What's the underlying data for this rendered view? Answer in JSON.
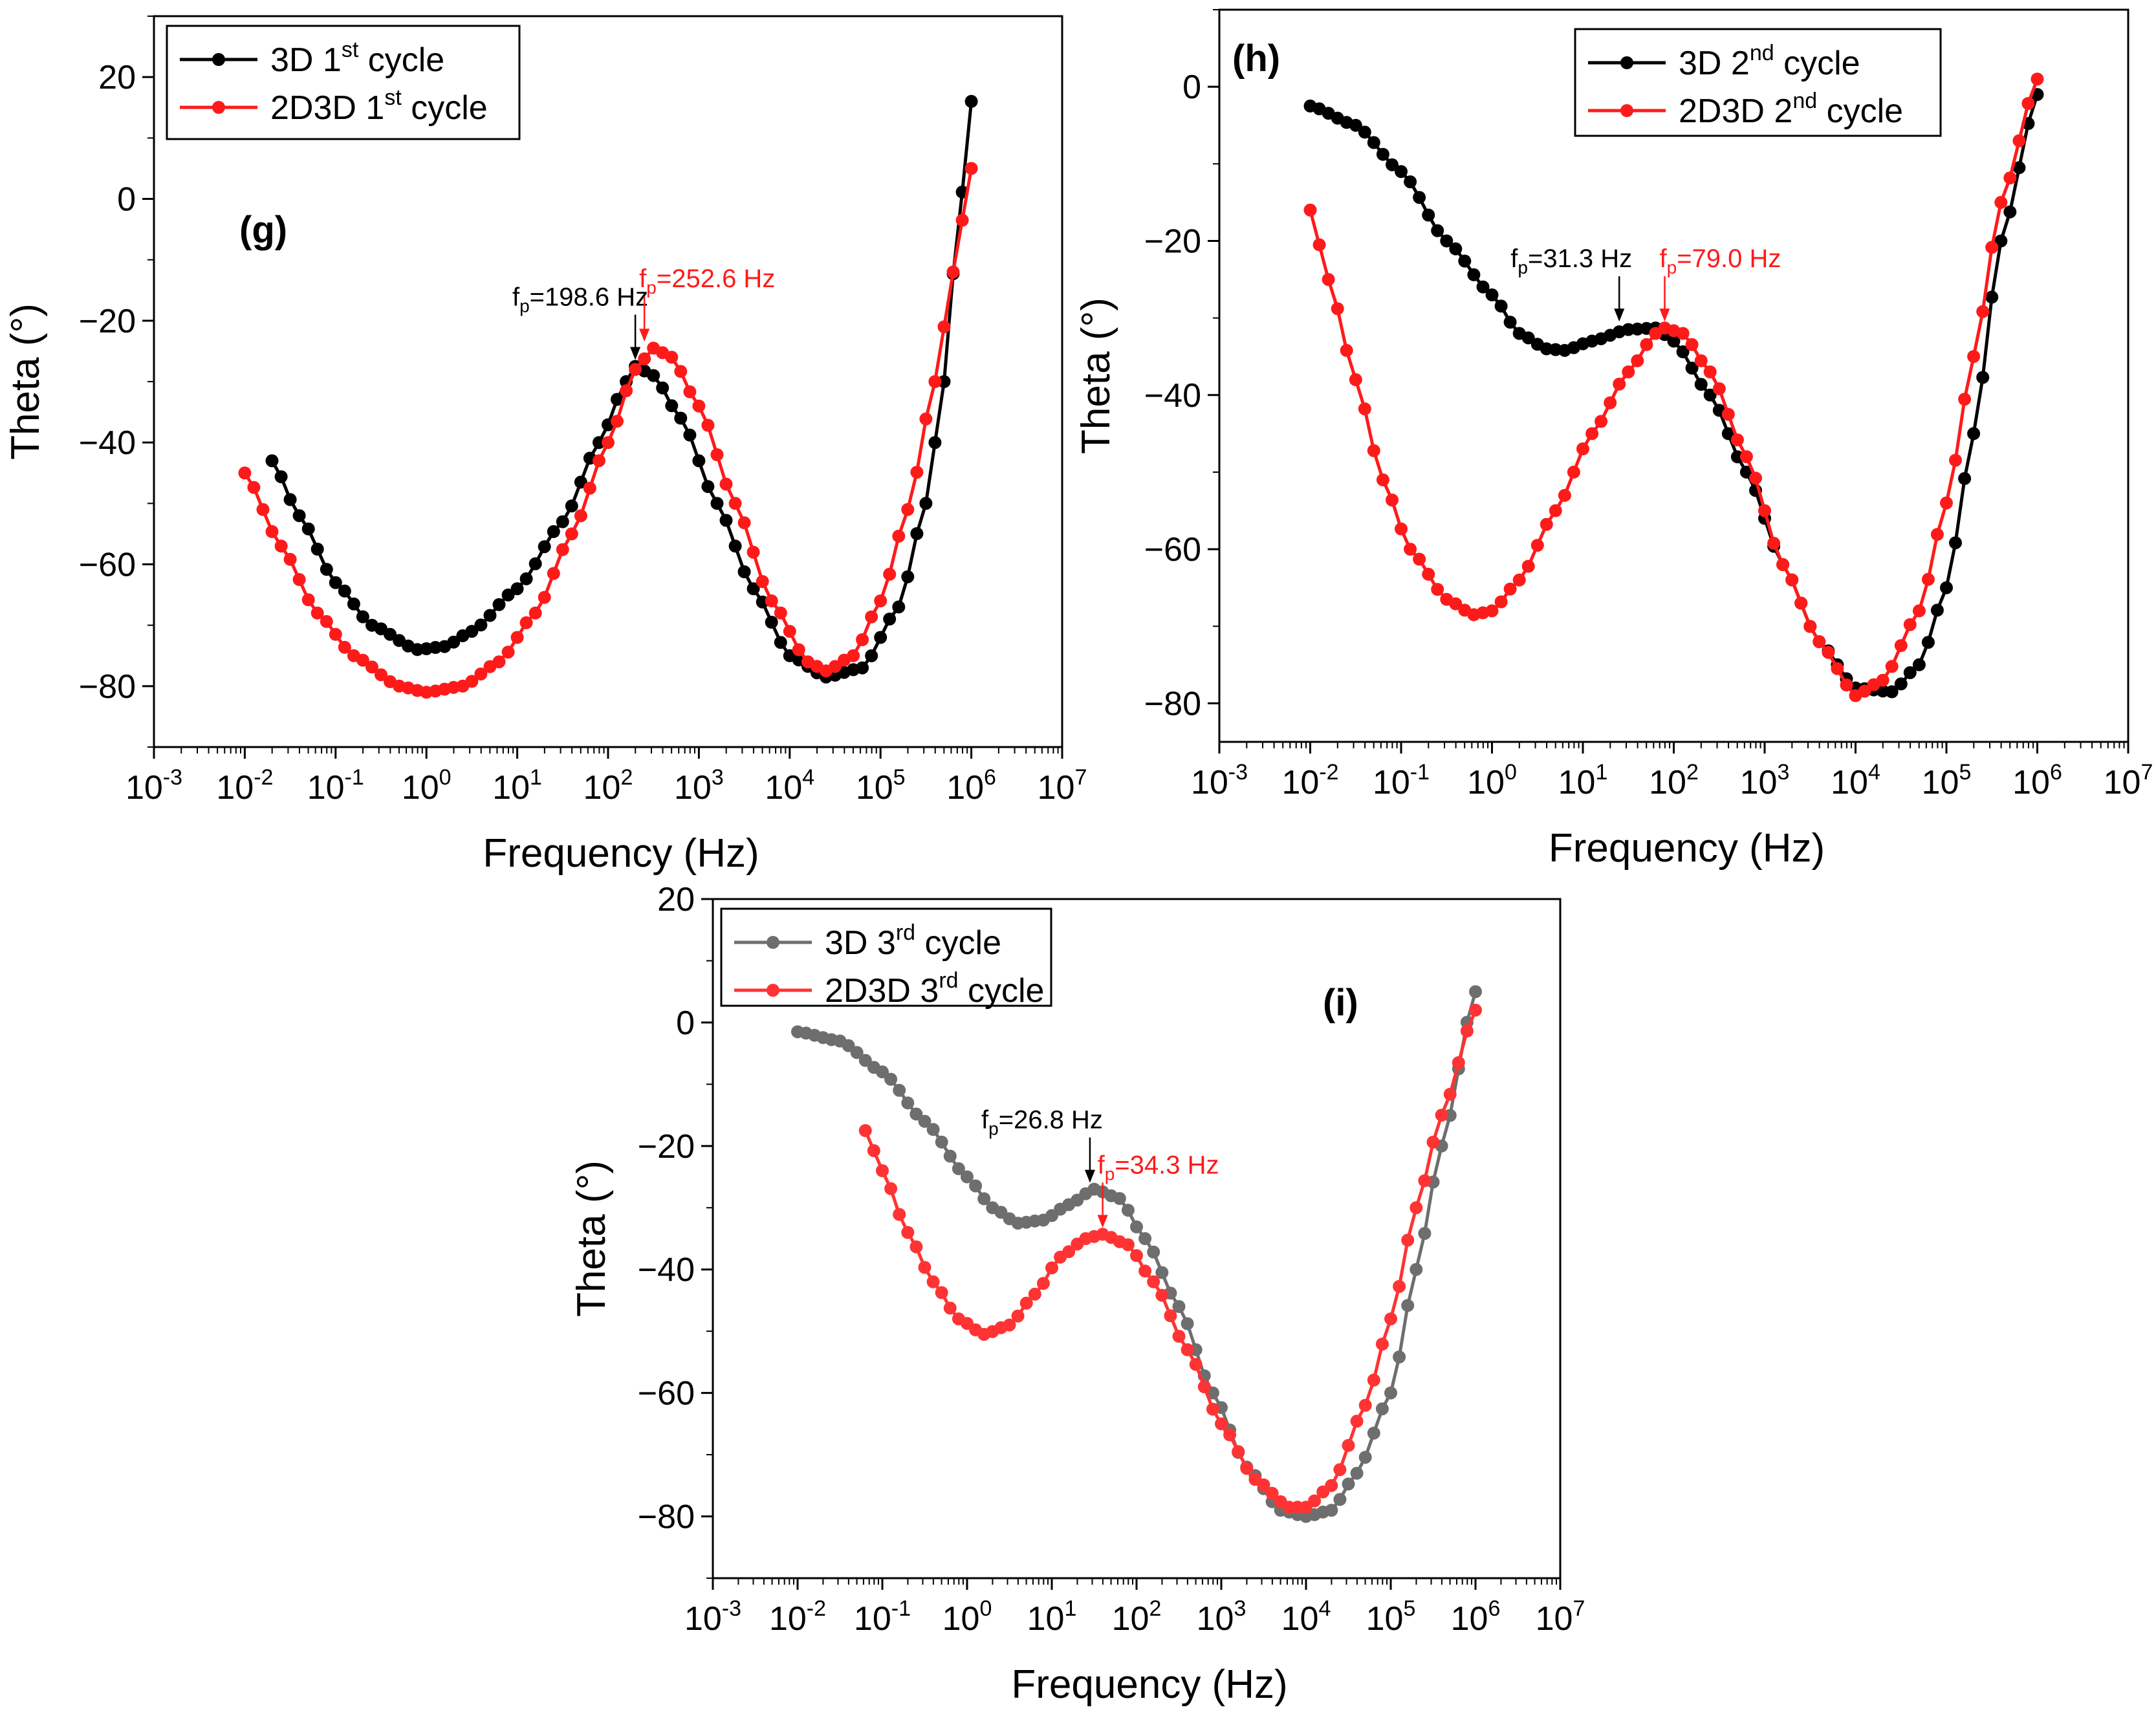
{
  "chart_data": [
    {
      "id": "g",
      "type": "line",
      "panel_label": "(g)",
      "xlabel": "Frequency (Hz)",
      "ylabel": "Theta (°)",
      "xscale": "log",
      "xlim_exponent": [
        -3,
        7
      ],
      "ylim": [
        -90,
        30
      ],
      "yticks": [
        20,
        0,
        -20,
        -40,
        -60,
        -80
      ],
      "legend_position": "top-left",
      "series": [
        {
          "name": "3D 1st cycle",
          "legend_base": "3D 1",
          "legend_sup": "st",
          "legend_tail": " cycle",
          "color": "#000000",
          "points": [
            [
              -1.7,
              -43
            ],
            [
              -1.4,
              -52
            ],
            [
              -1.0,
              -63
            ],
            [
              -0.6,
              -70
            ],
            [
              -0.1,
              -74
            ],
            [
              0.2,
              -73.5
            ],
            [
              0.5,
              -71
            ],
            [
              1.0,
              -64
            ],
            [
              1.5,
              -53
            ],
            [
              1.9,
              -40
            ],
            [
              2.2,
              -30
            ],
            [
              2.3,
              -27.5
            ],
            [
              2.5,
              -29
            ],
            [
              2.8,
              -36
            ],
            [
              3.2,
              -50
            ],
            [
              3.6,
              -64
            ],
            [
              4.0,
              -75
            ],
            [
              4.4,
              -78.5
            ],
            [
              4.8,
              -77
            ],
            [
              5.2,
              -67
            ],
            [
              5.5,
              -50
            ],
            [
              5.7,
              -30
            ],
            [
              5.85,
              -5
            ],
            [
              6.0,
              16
            ]
          ]
        },
        {
          "name": "2D3D 1st cycle",
          "legend_base": "2D3D 1",
          "legend_sup": "st",
          "legend_tail": " cycle",
          "color": "#ff1a1a",
          "points": [
            [
              -2.0,
              -45
            ],
            [
              -1.6,
              -57
            ],
            [
              -1.2,
              -68
            ],
            [
              -0.8,
              -75
            ],
            [
              -0.3,
              -80
            ],
            [
              0.0,
              -81
            ],
            [
              0.4,
              -80
            ],
            [
              0.8,
              -76
            ],
            [
              1.2,
              -68
            ],
            [
              1.6,
              -55
            ],
            [
              2.0,
              -40
            ],
            [
              2.3,
              -28
            ],
            [
              2.5,
              -24.5
            ],
            [
              2.7,
              -26
            ],
            [
              3.0,
              -34
            ],
            [
              3.4,
              -50
            ],
            [
              3.8,
              -66
            ],
            [
              4.2,
              -76
            ],
            [
              4.4,
              -77.5
            ],
            [
              4.7,
              -75
            ],
            [
              5.0,
              -66
            ],
            [
              5.3,
              -51
            ],
            [
              5.6,
              -30
            ],
            [
              5.8,
              -12
            ],
            [
              6.0,
              5
            ]
          ]
        }
      ],
      "annotations": [
        {
          "base": "f",
          "sub": "p",
          "text": "=198.6 Hz",
          "color": "#000000",
          "x_exp": 2.3,
          "y": -27.5
        },
        {
          "base": "f",
          "sub": "p",
          "text": "=252.6 Hz",
          "color": "#ff1a1a",
          "x_exp": 2.4,
          "y": -24.5
        }
      ]
    },
    {
      "id": "h",
      "type": "line",
      "panel_label": "(h)",
      "xlabel": "Frequency (Hz)",
      "ylabel": "Theta (°)",
      "xscale": "log",
      "xlim_exponent": [
        -3,
        7
      ],
      "ylim": [
        -85,
        10
      ],
      "yticks": [
        0,
        -20,
        -40,
        -60,
        -80
      ],
      "legend_position": "top-right",
      "series": [
        {
          "name": "3D 2nd cycle",
          "legend_base": "3D 2",
          "legend_sup": "nd",
          "legend_tail": " cycle",
          "color": "#000000",
          "points": [
            [
              -2.0,
              -2.5
            ],
            [
              -1.5,
              -5
            ],
            [
              -1.0,
              -11
            ],
            [
              -0.5,
              -20
            ],
            [
              0.0,
              -27
            ],
            [
              0.3,
              -32
            ],
            [
              0.6,
              -34
            ],
            [
              0.8,
              -34.2
            ],
            [
              1.1,
              -33
            ],
            [
              1.5,
              -31.5
            ],
            [
              1.8,
              -31.3
            ],
            [
              2.0,
              -33
            ],
            [
              2.4,
              -40
            ],
            [
              2.8,
              -50
            ],
            [
              3.2,
              -62
            ],
            [
              3.6,
              -72
            ],
            [
              4.0,
              -78
            ],
            [
              4.4,
              -78.5
            ],
            [
              4.7,
              -75
            ],
            [
              5.0,
              -65
            ],
            [
              5.3,
              -45
            ],
            [
              5.6,
              -20
            ],
            [
              6.0,
              -1
            ]
          ]
        },
        {
          "name": "2D3D 2nd cycle",
          "legend_base": "2D3D 2",
          "legend_sup": "nd",
          "legend_tail": " cycle",
          "color": "#ff1a1a",
          "points": [
            [
              -2.0,
              -16
            ],
            [
              -1.8,
              -25
            ],
            [
              -1.5,
              -38
            ],
            [
              -1.2,
              -51
            ],
            [
              -0.9,
              -60
            ],
            [
              -0.5,
              -66.5
            ],
            [
              -0.2,
              -68.5
            ],
            [
              0.0,
              -68
            ],
            [
              0.3,
              -64
            ],
            [
              0.7,
              -55
            ],
            [
              1.1,
              -45
            ],
            [
              1.5,
              -37
            ],
            [
              1.8,
              -32
            ],
            [
              1.9,
              -31.3
            ],
            [
              2.1,
              -32
            ],
            [
              2.4,
              -37
            ],
            [
              2.8,
              -48
            ],
            [
              3.2,
              -62
            ],
            [
              3.6,
              -72
            ],
            [
              4.0,
              -79
            ],
            [
              4.3,
              -77
            ],
            [
              4.7,
              -68
            ],
            [
              5.0,
              -54
            ],
            [
              5.3,
              -35
            ],
            [
              5.6,
              -15
            ],
            [
              6.0,
              1
            ]
          ]
        }
      ],
      "annotations": [
        {
          "base": "f",
          "sub": "p",
          "text": "=31.3 Hz",
          "color": "#000000",
          "x_exp": 1.4,
          "y": -31.3
        },
        {
          "base": "f",
          "sub": "p",
          "text": "=79.0 Hz",
          "color": "#ff1a1a",
          "x_exp": 1.9,
          "y": -31.3
        }
      ]
    },
    {
      "id": "i",
      "type": "line",
      "panel_label": "(i)",
      "xlabel": "Frequency (Hz)",
      "ylabel": "Theta (°)",
      "xscale": "log",
      "xlim_exponent": [
        -3,
        7
      ],
      "ylim": [
        -90,
        20
      ],
      "yticks": [
        20,
        0,
        -20,
        -40,
        -60,
        -80
      ],
      "legend_position": "top-left",
      "series": [
        {
          "name": "3D 3rd cycle",
          "legend_base": "3D 3",
          "legend_sup": "rd",
          "legend_tail": " cycle",
          "color": "#6e6e6e",
          "points": [
            [
              -2.0,
              -1.5
            ],
            [
              -1.5,
              -3
            ],
            [
              -1.0,
              -8
            ],
            [
              -0.5,
              -16
            ],
            [
              0.0,
              -25
            ],
            [
              0.3,
              -30
            ],
            [
              0.6,
              -32.5
            ],
            [
              0.9,
              -32
            ],
            [
              1.2,
              -29.5
            ],
            [
              1.5,
              -27
            ],
            [
              1.8,
              -28.5
            ],
            [
              2.1,
              -35
            ],
            [
              2.5,
              -46
            ],
            [
              2.9,
              -60
            ],
            [
              3.3,
              -72
            ],
            [
              3.7,
              -79
            ],
            [
              4.0,
              -80
            ],
            [
              4.3,
              -79
            ],
            [
              4.6,
              -73
            ],
            [
              5.0,
              -60
            ],
            [
              5.3,
              -40
            ],
            [
              5.6,
              -20
            ],
            [
              6.0,
              5
            ]
          ]
        },
        {
          "name": "2D3D 3rd cycle",
          "legend_base": "2D3D 3",
          "legend_sup": "rd",
          "legend_tail": " cycle",
          "color": "#ff3333",
          "points": [
            [
              -1.2,
              -17.5
            ],
            [
              -1.0,
              -24
            ],
            [
              -0.7,
              -34
            ],
            [
              -0.4,
              -42
            ],
            [
              -0.1,
              -48
            ],
            [
              0.2,
              -50.5
            ],
            [
              0.5,
              -49
            ],
            [
              0.8,
              -44
            ],
            [
              1.1,
              -38
            ],
            [
              1.4,
              -35
            ],
            [
              1.6,
              -34.3
            ],
            [
              1.9,
              -36
            ],
            [
              2.2,
              -42
            ],
            [
              2.6,
              -53
            ],
            [
              3.0,
              -65
            ],
            [
              3.4,
              -74
            ],
            [
              3.8,
              -78.5
            ],
            [
              4.0,
              -78.5
            ],
            [
              4.3,
              -75
            ],
            [
              4.7,
              -62
            ],
            [
              5.0,
              -48
            ],
            [
              5.3,
              -30
            ],
            [
              5.6,
              -15
            ],
            [
              6.0,
              2
            ]
          ]
        }
      ],
      "annotations": [
        {
          "base": "f",
          "sub": "p",
          "text": "=26.8 Hz",
          "color": "#000000",
          "x_exp": 1.45,
          "y": -27
        },
        {
          "base": "f",
          "sub": "p",
          "text": "=34.3 Hz",
          "color": "#ff1a1a",
          "x_exp": 1.6,
          "y": -34.3
        }
      ]
    }
  ]
}
